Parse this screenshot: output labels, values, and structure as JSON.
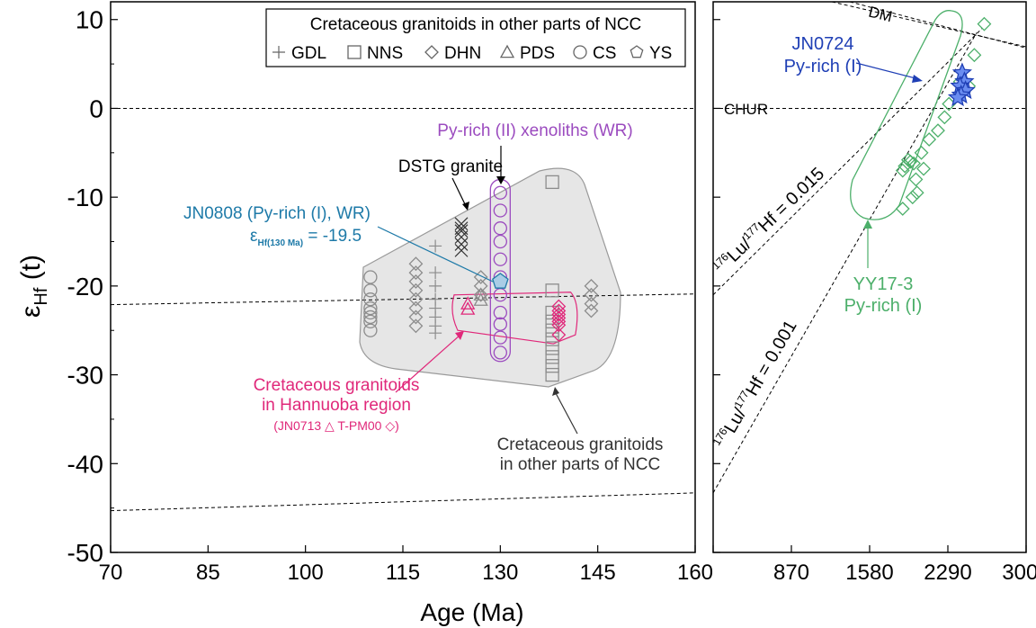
{
  "chart_data": [
    {
      "type": "scatter",
      "panel": "left",
      "xlabel": "Age (Ma)",
      "ylabel_main": "ε",
      "ylabel_sub": "Hf",
      "ylabel_suffix": " (t)",
      "xlim": [
        70,
        160
      ],
      "ylim": [
        -50,
        12
      ],
      "xticks": [
        "70",
        "85",
        "100",
        "115",
        "130",
        "145",
        "160"
      ],
      "yticks": [
        "10",
        "0",
        "-10",
        "-20",
        "-30",
        "-40",
        "-50"
      ],
      "legend": {
        "position": "top-right",
        "title": "Cretaceous granitoids in other parts of NCC",
        "entries": [
          {
            "symbol": "plus",
            "label": "GDL"
          },
          {
            "symbol": "square",
            "label": "NNS"
          },
          {
            "symbol": "diamond",
            "label": "DHN"
          },
          {
            "symbol": "triangle",
            "label": "PDS"
          },
          {
            "symbol": "circle",
            "label": "CS"
          },
          {
            "symbol": "pentagon",
            "label": "YS"
          }
        ]
      },
      "series": [
        {
          "symbol": "circle",
          "color": "#8c8c8c",
          "points": [
            [
              110,
              -19
            ],
            [
              110,
              -20.5
            ],
            [
              110,
              -21.5
            ],
            [
              110,
              -22.5
            ],
            [
              110,
              -23
            ],
            [
              110,
              -23.5
            ],
            [
              110,
              -24
            ],
            [
              110,
              -25
            ]
          ]
        },
        {
          "symbol": "diamond",
          "color": "#8c8c8c",
          "points": [
            [
              117,
              -17.5
            ],
            [
              117,
              -18.5
            ],
            [
              117,
              -19.5
            ],
            [
              117,
              -20.5
            ],
            [
              117,
              -21.5
            ],
            [
              117,
              -22.5
            ],
            [
              117,
              -23.5
            ],
            [
              117,
              -24.5
            ],
            [
              127,
              -19
            ],
            [
              127,
              -20
            ],
            [
              127,
              -21
            ],
            [
              144,
              -20
            ],
            [
              144,
              -21
            ],
            [
              144,
              -22
            ],
            [
              144,
              -22.8
            ]
          ]
        },
        {
          "symbol": "plus",
          "color": "#8c8c8c",
          "points": [
            [
              120,
              -15.5
            ],
            [
              120,
              -18.5
            ],
            [
              120,
              -20
            ],
            [
              120,
              -21.5
            ],
            [
              120,
              -22.5
            ],
            [
              120,
              -23.5
            ],
            [
              120,
              -24.5
            ],
            [
              120,
              -25.3
            ]
          ]
        },
        {
          "symbol": "x",
          "color": "#333333",
          "points": [
            [
              124,
              -13
            ],
            [
              124,
              -13.8
            ],
            [
              124,
              -14.5
            ],
            [
              124,
              -15.3
            ],
            [
              124,
              -16
            ],
            [
              124,
              -13.5
            ]
          ]
        },
        {
          "symbol": "triangle",
          "color": "#8c8c8c",
          "points": [
            [
              127,
              -21
            ],
            [
              127,
              -21.6
            ]
          ]
        },
        {
          "symbol": "square",
          "color": "#8c8c8c",
          "points": [
            [
              138,
              -8.3
            ],
            [
              138,
              -20.5
            ],
            [
              138,
              -23
            ],
            [
              138,
              -24
            ],
            [
              138,
              -25
            ],
            [
              138,
              -26
            ],
            [
              138,
              -27
            ],
            [
              138,
              -28
            ],
            [
              138,
              -29
            ],
            [
              138,
              -30
            ]
          ]
        },
        {
          "symbol": "circle",
          "color": "#9b4bbf",
          "points": [
            [
              130,
              -9.5
            ],
            [
              130,
              -11.5
            ],
            [
              130,
              -13.5
            ],
            [
              130,
              -15
            ],
            [
              130,
              -17
            ],
            [
              130,
              -19
            ],
            [
              130,
              -21
            ],
            [
              130,
              -23
            ],
            [
              130,
              -24.3
            ],
            [
              130,
              -25.8
            ],
            [
              130,
              -27.5
            ]
          ]
        },
        {
          "symbol": "triangle",
          "color": "#e0287a",
          "points": [
            [
              125,
              -22
            ],
            [
              125,
              -22.6
            ]
          ]
        },
        {
          "symbol": "diamond",
          "color": "#e0287a",
          "points": [
            [
              139,
              -22.3
            ],
            [
              139,
              -22.8
            ],
            [
              139,
              -23.2
            ],
            [
              139,
              -23.6
            ],
            [
              139,
              -24
            ],
            [
              139,
              -24.4
            ],
            [
              139,
              -25.5
            ]
          ]
        },
        {
          "symbol": "pentagon",
          "color": "#1e7aa8",
          "fill": "#a9cde6",
          "points": [
            [
              130,
              -19.5
            ]
          ]
        }
      ],
      "reference_lines": [
        {
          "label": "",
          "points": [
            [
              70,
              0
            ],
            [
              160,
              0
            ]
          ]
        },
        {
          "label": "",
          "points": [
            [
              70,
              -22.1
            ],
            [
              160,
              -20.9
            ]
          ]
        },
        {
          "label": "",
          "points": [
            [
              70,
              -45.3
            ],
            [
              160,
              -43.3
            ]
          ]
        }
      ],
      "annotations": [
        {
          "lines": [
            "Py-rich (II) xenoliths (WR)"
          ],
          "color": "#9b4bbf"
        },
        {
          "lines": [
            "DSTG granite"
          ],
          "color": "#000000"
        },
        {
          "lines": [
            "JN0808 (Py-rich (I), WR)"
          ],
          "color": "#1e7aa8"
        },
        {
          "lines": [
            "ε",
            "Hf(130 Ma)",
            " =  -19.5"
          ],
          "color": "#1e7aa8"
        },
        {
          "lines": [
            "Cretaceous granitoids",
            "in Hannuoba region",
            "(JN0713 △   T-PM00 ◇)"
          ],
          "color": "#e0287a"
        },
        {
          "lines": [
            "Cretaceous granitoids",
            "in other parts of NCC"
          ],
          "color": "#333333"
        }
      ]
    },
    {
      "type": "scatter",
      "panel": "right",
      "xlim": [
        160,
        3000
      ],
      "ylim": [
        -50,
        12
      ],
      "xticks": [
        "160",
        "870",
        "1580",
        "2290",
        "3000"
      ],
      "series": [
        {
          "symbol": "diamond",
          "color": "#4caf6a",
          "points": [
            [
              2620,
              9.5
            ],
            [
              2530,
              6
            ],
            [
              2400,
              3
            ],
            [
              2480,
              2.5
            ],
            [
              2300,
              0.5
            ],
            [
              2260,
              -1
            ],
            [
              2200,
              -2.5
            ],
            [
              2120,
              -3.5
            ],
            [
              2050,
              -5
            ],
            [
              1930,
              -5.8
            ],
            [
              1950,
              -6
            ],
            [
              1980,
              -6.2
            ],
            [
              1900,
              -6.5
            ],
            [
              2070,
              -6.8
            ],
            [
              1880,
              -7
            ],
            [
              2000,
              -8
            ],
            [
              2010,
              -9.5
            ],
            [
              1970,
              -10
            ],
            [
              1880,
              -11.3
            ]
          ]
        },
        {
          "symbol": "star",
          "color": "#1f3fb5",
          "points": [
            [
              2420,
              4
            ],
            [
              2440,
              3
            ],
            [
              2400,
              2.5
            ],
            [
              2450,
              2
            ],
            [
              2410,
              1.5
            ],
            [
              2380,
              1.2
            ]
          ]
        }
      ],
      "reference_lines": [
        {
          "label": "CHUR",
          "points": [
            [
              160,
              0
            ],
            [
              3000,
              0
            ]
          ]
        },
        {
          "label": "DM",
          "points": [
            [
              1400,
              12
            ],
            [
              3000,
              6.8
            ]
          ]
        },
        {
          "label": "176Lu/177Hf = 0.015",
          "points": [
            [
              160,
              -21
            ],
            [
              2600,
              9
            ]
          ]
        },
        {
          "label": "176Lu/177Hf = 0.001",
          "points": [
            [
              160,
              -43.3
            ],
            [
              2550,
              8.5
            ]
          ]
        }
      ],
      "annotations": [
        {
          "lines": [
            "JN0724",
            "Py-rich (I)"
          ],
          "color": "#1f3fb5"
        },
        {
          "lines": [
            "YY17-3",
            "Py-rich (I)"
          ],
          "color": "#4caf6a"
        }
      ]
    }
  ]
}
